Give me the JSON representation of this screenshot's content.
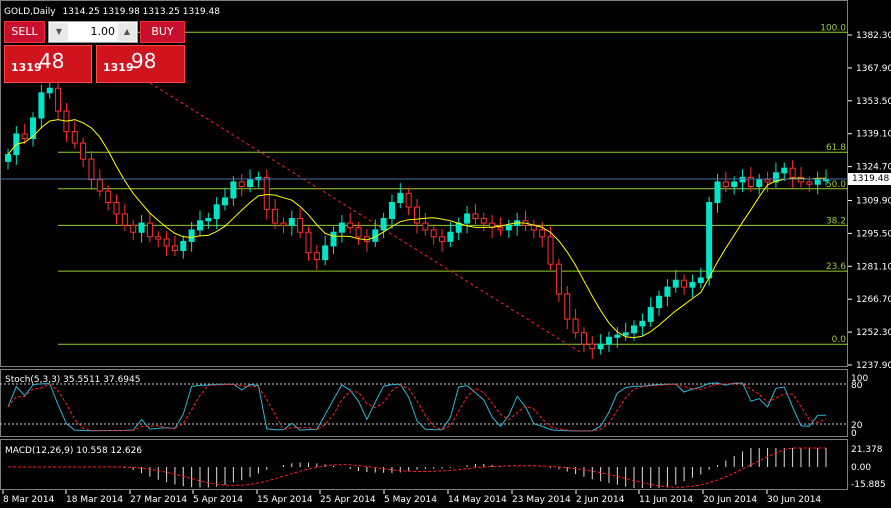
{
  "header": {
    "symbol": "GOLD,Daily",
    "ohlc": "1314.25 1319.98 1313.25 1319.48"
  },
  "trade_panel": {
    "sell_label": "SELL",
    "buy_label": "BUY",
    "lot_value": "1.00",
    "sell_price_prefix": "1319",
    "sell_price_big": "48",
    "buy_price_prefix": "1319",
    "buy_price_big": "98",
    "decrement_icon": "triangle-down-icon",
    "increment_icon": "triangle-up-icon"
  },
  "price_axis": {
    "labels": [
      "1382.30",
      "1367.90",
      "1353.50",
      "1339.10",
      "1324.70",
      "1309.90",
      "1295.50",
      "1281.10",
      "1266.70",
      "1252.30",
      "1237.90"
    ],
    "current_price": "1319.48"
  },
  "fibonacci": {
    "levels": [
      "100.0",
      "61.8",
      "50.0",
      "38.2",
      "23.6",
      "0.0"
    ],
    "prices": [
      1383.5,
      1331.0,
      1315.0,
      1299.0,
      1279.0,
      1247.0
    ],
    "color": "#9acd32"
  },
  "stochastic": {
    "title": "Stoch(5,3,3) 35.5511 37.6945",
    "levels": [
      "100",
      "80",
      "20",
      "0"
    ]
  },
  "macd": {
    "title": "MACD(12,26,9) 10.558 12.626",
    "levels": [
      "21.378",
      "0.00",
      "-15.885"
    ]
  },
  "time_axis": {
    "labels": [
      "8 Mar 2014",
      "18 Mar 2014",
      "27 Mar 2014",
      "5 Apr 2014",
      "15 Apr 2014",
      "25 Apr 2014",
      "5 May 2014",
      "14 May 2014",
      "23 May 2014",
      "2 Jun 2014",
      "11 Jun 2014",
      "20 Jun 2014",
      "30 Jun 2014"
    ]
  },
  "colors": {
    "bull_candle": "#00e5c8",
    "bear_candle": "#ff3030",
    "ma_line": "#ffff00",
    "trendline": "#ff2020",
    "stoch_main": "#2bb5d6",
    "stoch_signal": "#ff2020",
    "grid_fib": "#9acd32"
  },
  "chart_data": {
    "type": "candlestick",
    "title": "GOLD,Daily",
    "ylim": [
      1234.0,
      1390.0
    ],
    "close_series": [
      1330,
      1339,
      1337,
      1346,
      1357,
      1359,
      1349,
      1340,
      1335,
      1328,
      1319,
      1314,
      1309,
      1304,
      1299,
      1296,
      1300,
      1294,
      1293,
      1290,
      1288,
      1292,
      1297,
      1301,
      1302,
      1308,
      1311,
      1318,
      1316,
      1319,
      1320,
      1306,
      1300,
      1299,
      1302,
      1296,
      1287,
      1284,
      1290,
      1296,
      1300,
      1298,
      1294,
      1292,
      1297,
      1302,
      1309,
      1313,
      1307,
      1300,
      1297,
      1294,
      1292,
      1296,
      1300,
      1304,
      1302,
      1300,
      1298,
      1297,
      1299,
      1301,
      1299,
      1297,
      1294,
      1282,
      1269,
      1258,
      1252,
      1247,
      1245,
      1247,
      1250,
      1251,
      1252,
      1255,
      1257,
      1263,
      1268,
      1272,
      1275,
      1272,
      1274,
      1276,
      1309,
      1318,
      1316,
      1318,
      1320,
      1316,
      1319,
      1318,
      1322,
      1324,
      1320,
      1318,
      1317,
      1319,
      1319
    ]
  }
}
